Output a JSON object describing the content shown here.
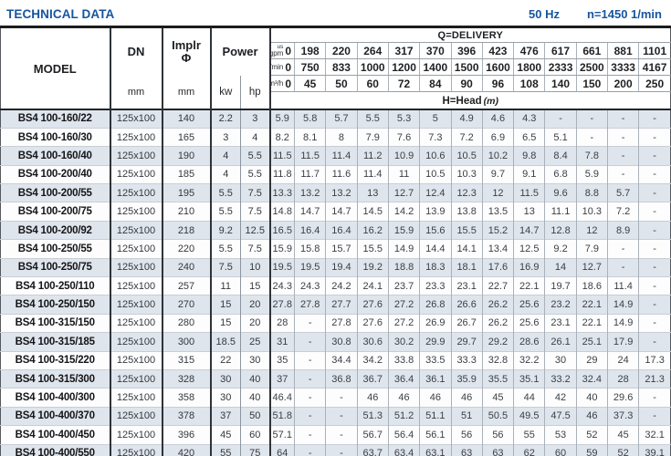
{
  "header_bar": {
    "title": "TECHNICAL DATA",
    "frequency": "50 Hz",
    "speed": "n=1450 1/min"
  },
  "colors": {
    "accent_blue": "#15559f",
    "row_stripe": "#dfe5ec"
  },
  "table": {
    "col_headers": {
      "model": "MODEL",
      "dn": "DN",
      "implr_line1": "Implr",
      "implr_line2": "Φ",
      "power": "Power",
      "mm": "mm",
      "kw": "kw",
      "hp": "hp",
      "delivery_title": "Q=DELIVERY",
      "head_title": "H=Head",
      "head_unit": "(m)"
    },
    "units": [
      {
        "label_lines": [
          "us",
          "gpm"
        ],
        "zero": "0",
        "values": [
          "198",
          "220",
          "264",
          "317",
          "370",
          "396",
          "423",
          "476",
          "617",
          "661",
          "881",
          "1101"
        ]
      },
      {
        "label_lines": [
          "l/min"
        ],
        "zero": "0",
        "values": [
          "750",
          "833",
          "1000",
          "1200",
          "1400",
          "1500",
          "1600",
          "1800",
          "2333",
          "2500",
          "3333",
          "4167"
        ]
      },
      {
        "label_lines": [
          "m³/h"
        ],
        "zero": "0",
        "values": [
          "45",
          "50",
          "60",
          "72",
          "84",
          "90",
          "96",
          "108",
          "140",
          "150",
          "200",
          "250"
        ]
      }
    ],
    "rows": [
      {
        "model": "BS4 100-160/22",
        "dn": "125x100",
        "implr": "140",
        "kw": "2.2",
        "hp": "3",
        "heads": [
          "5.9",
          "5.8",
          "5.7",
          "5.5",
          "5.3",
          "5",
          "4.9",
          "4.6",
          "4.3",
          "-",
          "-",
          "-",
          "-"
        ]
      },
      {
        "model": "BS4 100-160/30",
        "dn": "125x100",
        "implr": "165",
        "kw": "3",
        "hp": "4",
        "heads": [
          "8.2",
          "8.1",
          "8",
          "7.9",
          "7.6",
          "7.3",
          "7.2",
          "6.9",
          "6.5",
          "5.1",
          "-",
          "-",
          "-"
        ]
      },
      {
        "model": "BS4 100-160/40",
        "dn": "125x100",
        "implr": "190",
        "kw": "4",
        "hp": "5.5",
        "heads": [
          "11.5",
          "11.5",
          "11.4",
          "11.2",
          "10.9",
          "10.6",
          "10.5",
          "10.2",
          "9.8",
          "8.4",
          "7.8",
          "-",
          "-"
        ]
      },
      {
        "model": "BS4 100-200/40",
        "dn": "125x100",
        "implr": "185",
        "kw": "4",
        "hp": "5.5",
        "heads": [
          "11.8",
          "11.7",
          "11.6",
          "11.4",
          "11",
          "10.5",
          "10.3",
          "9.7",
          "9.1",
          "6.8",
          "5.9",
          "-",
          "-"
        ]
      },
      {
        "model": "BS4 100-200/55",
        "dn": "125x100",
        "implr": "195",
        "kw": "5.5",
        "hp": "7.5",
        "heads": [
          "13.3",
          "13.2",
          "13.2",
          "13",
          "12.7",
          "12.4",
          "12.3",
          "12",
          "11.5",
          "9.6",
          "8.8",
          "5.7",
          "-"
        ]
      },
      {
        "model": "BS4 100-200/75",
        "dn": "125x100",
        "implr": "210",
        "kw": "5.5",
        "hp": "7.5",
        "heads": [
          "14.8",
          "14.7",
          "14.7",
          "14.5",
          "14.2",
          "13.9",
          "13.8",
          "13.5",
          "13",
          "11.1",
          "10.3",
          "7.2",
          "-"
        ]
      },
      {
        "model": "BS4 100-200/92",
        "dn": "125x100",
        "implr": "218",
        "kw": "9.2",
        "hp": "12.5",
        "heads": [
          "16.5",
          "16.4",
          "16.4",
          "16.2",
          "15.9",
          "15.6",
          "15.5",
          "15.2",
          "14.7",
          "12.8",
          "12",
          "8.9",
          "-"
        ]
      },
      {
        "model": "BS4 100-250/55",
        "dn": "125x100",
        "implr": "220",
        "kw": "5.5",
        "hp": "7.5",
        "heads": [
          "15.9",
          "15.8",
          "15.7",
          "15.5",
          "14.9",
          "14.4",
          "14.1",
          "13.4",
          "12.5",
          "9.2",
          "7.9",
          "-",
          "-"
        ]
      },
      {
        "model": "BS4 100-250/75",
        "dn": "125x100",
        "implr": "240",
        "kw": "7.5",
        "hp": "10",
        "heads": [
          "19.5",
          "19.5",
          "19.4",
          "19.2",
          "18.8",
          "18.3",
          "18.1",
          "17.6",
          "16.9",
          "14",
          "12.7",
          "-",
          "-"
        ]
      },
      {
        "model": "BS4 100-250/110",
        "dn": "125x100",
        "implr": "257",
        "kw": "11",
        "hp": "15",
        "heads": [
          "24.3",
          "24.3",
          "24.2",
          "24.1",
          "23.7",
          "23.3",
          "23.1",
          "22.7",
          "22.1",
          "19.7",
          "18.6",
          "11.4",
          "-"
        ]
      },
      {
        "model": "BS4 100-250/150",
        "dn": "125x100",
        "implr": "270",
        "kw": "15",
        "hp": "20",
        "heads": [
          "27.8",
          "27.8",
          "27.7",
          "27.6",
          "27.2",
          "26.8",
          "26.6",
          "26.2",
          "25.6",
          "23.2",
          "22.1",
          "14.9",
          "-"
        ]
      },
      {
        "model": "BS4 100-315/150",
        "dn": "125x100",
        "implr": "280",
        "kw": "15",
        "hp": "20",
        "heads": [
          "28",
          "-",
          "27.8",
          "27.6",
          "27.2",
          "26.9",
          "26.7",
          "26.2",
          "25.6",
          "23.1",
          "22.1",
          "14.9",
          "-"
        ]
      },
      {
        "model": "BS4 100-315/185",
        "dn": "125x100",
        "implr": "300",
        "kw": "18.5",
        "hp": "25",
        "heads": [
          "31",
          "-",
          "30.8",
          "30.6",
          "30.2",
          "29.9",
          "29.7",
          "29.2",
          "28.6",
          "26.1",
          "25.1",
          "17.9",
          "-"
        ]
      },
      {
        "model": "BS4 100-315/220",
        "dn": "125x100",
        "implr": "315",
        "kw": "22",
        "hp": "30",
        "heads": [
          "35",
          "-",
          "34.4",
          "34.2",
          "33.8",
          "33.5",
          "33.3",
          "32.8",
          "32.2",
          "30",
          "29",
          "24",
          "17.3"
        ]
      },
      {
        "model": "BS4 100-315/300",
        "dn": "125x100",
        "implr": "328",
        "kw": "30",
        "hp": "40",
        "heads": [
          "37",
          "-",
          "36.8",
          "36.7",
          "36.4",
          "36.1",
          "35.9",
          "35.5",
          "35.1",
          "33.2",
          "32.4",
          "28",
          "21.3"
        ]
      },
      {
        "model": "BS4 100-400/300",
        "dn": "125x100",
        "implr": "358",
        "kw": "30",
        "hp": "40",
        "heads": [
          "46.4",
          "-",
          "-",
          "46",
          "46",
          "46",
          "46",
          "45",
          "44",
          "42",
          "40",
          "29.6",
          "-"
        ]
      },
      {
        "model": "BS4 100-400/370",
        "dn": "125x100",
        "implr": "378",
        "kw": "37",
        "hp": "50",
        "heads": [
          "51.8",
          "-",
          "-",
          "51.3",
          "51.2",
          "51.1",
          "51",
          "50.5",
          "49.5",
          "47.5",
          "46",
          "37.3",
          "-"
        ]
      },
      {
        "model": "BS4 100-400/450",
        "dn": "125x100",
        "implr": "396",
        "kw": "45",
        "hp": "60",
        "heads": [
          "57.1",
          "-",
          "-",
          "56.7",
          "56.4",
          "56.1",
          "56",
          "56",
          "55",
          "53",
          "52",
          "45",
          "32.1"
        ]
      },
      {
        "model": "BS4 100-400/550",
        "dn": "125x100",
        "implr": "420",
        "kw": "55",
        "hp": "75",
        "heads": [
          "64",
          "-",
          "-",
          "63.7",
          "63.4",
          "63.1",
          "63",
          "63",
          "62",
          "60",
          "59",
          "52",
          "39.1"
        ]
      }
    ]
  }
}
